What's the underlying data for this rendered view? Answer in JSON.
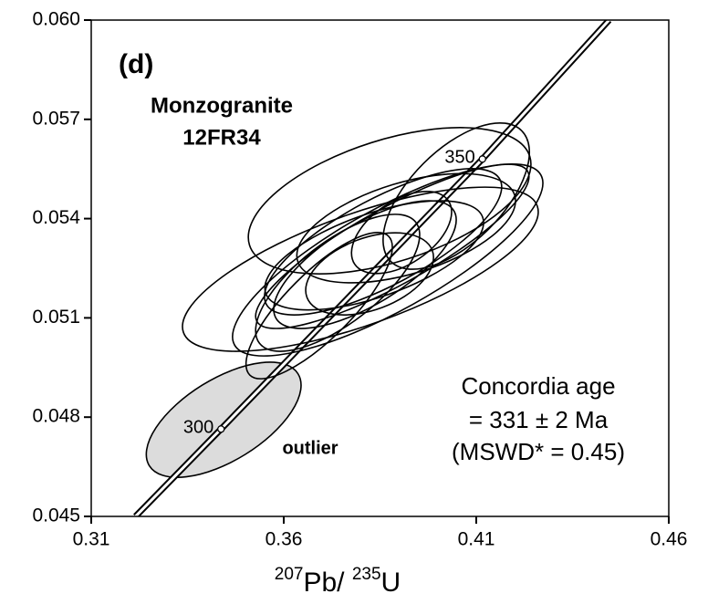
{
  "chart_data": {
    "type": "concordia",
    "panel_label": "(d)",
    "sample_lines": [
      "Monzogranite",
      "12FR34"
    ],
    "age_lines": [
      "Concordia age",
      "= 331 ± 2 Ma",
      "(MSWD* = 0.45)"
    ],
    "xlabel_parts": [
      "207",
      "Pb/ ",
      "235",
      "U"
    ],
    "xlim": [
      0.31,
      0.46
    ],
    "xticks": [
      0.31,
      0.36,
      0.41,
      0.46
    ],
    "ylim": [
      0.045,
      0.06
    ],
    "yticks": [
      0.045,
      0.048,
      0.051,
      0.054,
      0.057,
      {
        "value": 0.06,
        "label": "0.060"
      }
    ],
    "concordia": {
      "x": [
        0.3215,
        0.3437,
        0.4116,
        0.4445
      ],
      "y": [
        0.045,
        0.04764,
        0.0558,
        0.06
      ]
    },
    "age_markers": {
      "ages": [
        300,
        350
      ],
      "x": [
        0.3437,
        0.4116
      ],
      "y": [
        0.04764,
        0.0558
      ]
    },
    "ellipses": {
      "x": [
        0.3799,
        0.3875,
        0.387,
        0.3858,
        0.3835,
        0.3906,
        0.3823,
        0.3811,
        0.3882,
        0.4048,
        0.374,
        0.3918,
        0.3692
      ],
      "y": [
        0.05247,
        0.05454,
        0.05275,
        0.0533,
        0.05289,
        0.05358,
        0.05233,
        0.05261,
        0.05316,
        0.05468,
        0.05206,
        0.05371,
        0.05137
      ],
      "x_err": [
        0.0462,
        0.0367,
        0.0403,
        0.0308,
        0.0284,
        0.013,
        0.0166,
        0.0237,
        0.0355,
        0.019,
        0.0213,
        0.0284,
        0.019
      ],
      "y_err": [
        0.00248,
        0.00221,
        0.0029,
        0.00221,
        0.00165,
        0.00124,
        0.00124,
        0.00193,
        0.00248,
        0.00221,
        0.00207,
        0.00165,
        0.00221
      ],
      "rho": [
        0.7,
        0.5,
        0.8,
        0.75,
        0.6,
        0.5,
        0.4,
        0.7,
        0.85,
        0.6,
        0.7,
        0.5,
        0.8
      ],
      "color": "#000000"
    },
    "outlier": {
      "name": "outlier",
      "x": 0.3444,
      "y": 0.04792,
      "x_err": 0.0201,
      "y_err": 0.00174,
      "rho": 0.6,
      "color": "#dcdcdc"
    }
  }
}
